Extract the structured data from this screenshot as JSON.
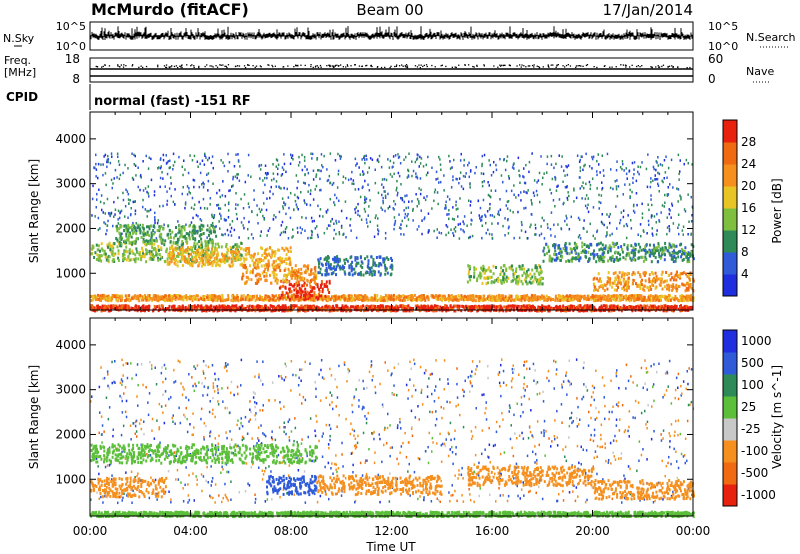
{
  "header": {
    "station": "McMurdo (fitACF)",
    "beam": "Beam 00",
    "date": "17/Jan/2014"
  },
  "noise_panel": {
    "left_label": "N.Sky",
    "right_label": "N.Search",
    "left_ticks": [
      "10^5",
      "10^0"
    ],
    "right_ticks": [
      "10^5",
      "10^0"
    ]
  },
  "freq_panel": {
    "left_label_top": "Freq.",
    "left_label_unit": "[MHz]",
    "right_label": "Nave",
    "left_ticks": [
      "18",
      "8"
    ],
    "right_ticks": [
      "60",
      "0"
    ]
  },
  "cpid_panel": {
    "label": "CPID",
    "text": "normal (fast) -151 RF"
  },
  "x_axis": {
    "label": "Time UT",
    "ticks": [
      "00:00",
      "04:00",
      "08:00",
      "12:00",
      "16:00",
      "20:00",
      "00:00"
    ]
  },
  "colors": {
    "power_scale": [
      "#1f2fe0",
      "#2f5bd8",
      "#2e8b57",
      "#7fbf3f",
      "#e9c425",
      "#f5901e",
      "#f06a12",
      "#e8200e"
    ],
    "velocity_scale": [
      "#e8200e",
      "#f06a12",
      "#f5901e",
      "#c8c8c8",
      "#5bbf3a",
      "#2e8b57",
      "#2f5bd8",
      "#1f2fe0"
    ]
  },
  "chart_data": [
    {
      "type": "heatmap",
      "panel": "power",
      "ylabel": "Slant Range [km]",
      "ylim": [
        180,
        4600
      ],
      "yticks": [
        1000,
        2000,
        3000,
        4000
      ],
      "xlabel": "",
      "xlim_hours": [
        0,
        24
      ],
      "colorbar": {
        "label": "Power [dB]",
        "range": [
          0,
          32
        ],
        "ticks": [
          4,
          8,
          12,
          16,
          20,
          24,
          28
        ]
      },
      "bands": [
        {
          "t_start": 0,
          "t_end": 24,
          "range_km": 250,
          "value": 30
        },
        {
          "t_start": 0,
          "t_end": 24,
          "range_km": 480,
          "value": 22
        },
        {
          "t_start": 0,
          "t_end": 6,
          "range_km": 1500,
          "value": 14
        },
        {
          "t_start": 1,
          "t_end": 5,
          "range_km": 1900,
          "value": 12
        },
        {
          "t_start": 3,
          "t_end": 8,
          "range_km": 1400,
          "value": 20
        },
        {
          "t_start": 7.5,
          "t_end": 9.5,
          "range_km": 650,
          "value": 29
        },
        {
          "t_start": 6,
          "t_end": 9,
          "range_km": 1000,
          "value": 22
        },
        {
          "t_start": 9,
          "t_end": 12,
          "range_km": 1200,
          "value": 8
        },
        {
          "t_start": 15,
          "t_end": 18,
          "range_km": 1000,
          "value": 14
        },
        {
          "t_start": 18,
          "t_end": 24,
          "range_km": 1500,
          "value": 10
        },
        {
          "t_start": 20,
          "t_end": 24,
          "range_km": 850,
          "value": 22
        }
      ]
    },
    {
      "type": "heatmap",
      "panel": "velocity",
      "ylabel": "Slant Range [km]",
      "ylim": [
        180,
        4600
      ],
      "yticks": [
        1000,
        2000,
        3000,
        4000
      ],
      "xlabel": "Time UT",
      "xlim_hours": [
        0,
        24
      ],
      "colorbar": {
        "label": "Velocity [m s^-1]",
        "ticks": [
          "1000",
          "500",
          "100",
          "25",
          "-25",
          "-100",
          "-500",
          "-1000"
        ]
      },
      "bands": [
        {
          "t_start": 0,
          "t_end": 24,
          "range_km": 250,
          "value": 0
        },
        {
          "t_start": 0,
          "t_end": 9,
          "range_km": 1600,
          "value": 0
        },
        {
          "t_start": 0,
          "t_end": 3,
          "range_km": 850,
          "value": -300
        },
        {
          "t_start": 7,
          "t_end": 9,
          "range_km": 900,
          "value": 300
        },
        {
          "t_start": 9,
          "t_end": 14,
          "range_km": 900,
          "value": -300
        },
        {
          "t_start": 15,
          "t_end": 20,
          "range_km": 1100,
          "value": -400
        },
        {
          "t_start": 20,
          "t_end": 24,
          "range_km": 800,
          "value": -200
        }
      ]
    }
  ]
}
